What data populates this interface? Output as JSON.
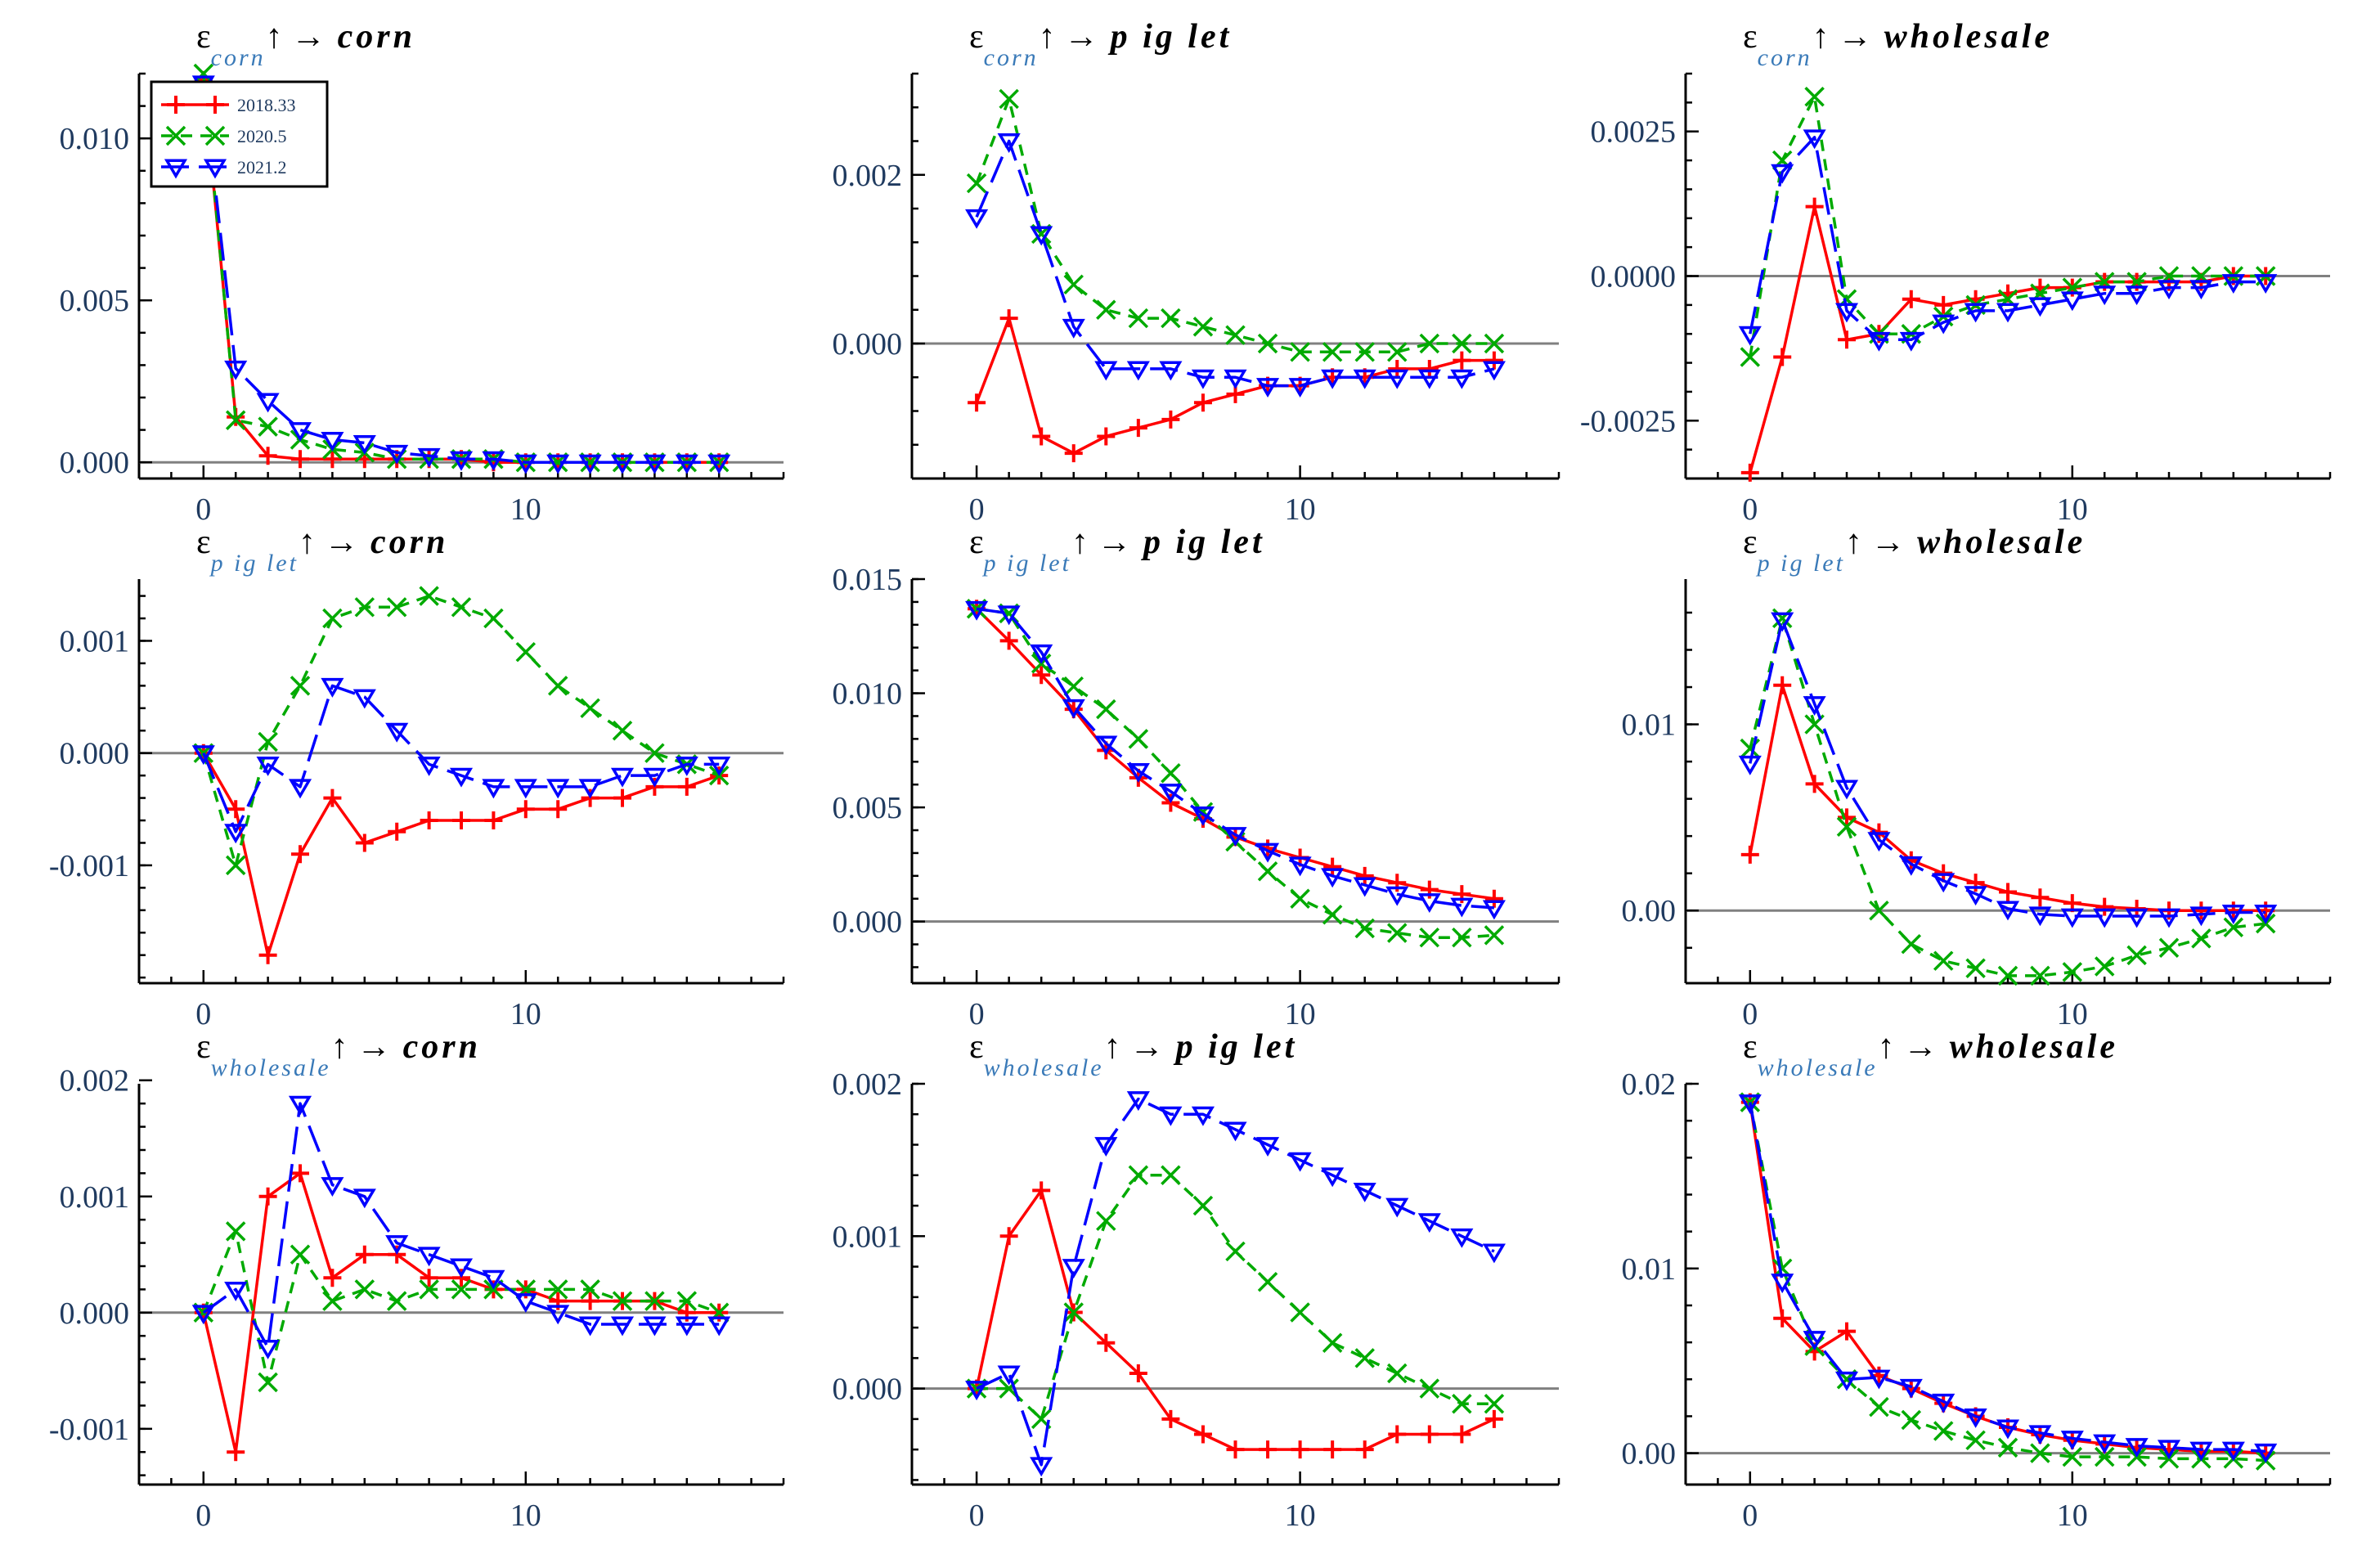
{
  "colors": {
    "series": [
      "#ff0000",
      "#00aa00",
      "#0000ff"
    ],
    "zero_line": "#808080",
    "axis": "#000000",
    "tick_label": "#1f3a5f",
    "title_sub": "#3a7ab8"
  },
  "chart_data": [
    {
      "type": "line",
      "title": {
        "prefix": "ε",
        "sub": "corn",
        "suffix": "↑ → corn"
      },
      "x": [
        0,
        1,
        2,
        3,
        4,
        5,
        6,
        7,
        8,
        9,
        10,
        11,
        12,
        13,
        14,
        15,
        16
      ],
      "xticks": [
        0,
        10
      ],
      "xtick_labels": [
        "0",
        "10"
      ],
      "xlim": [
        -2,
        18
      ],
      "ylim": [
        -0.0005,
        0.012
      ],
      "yticks": [
        0.0,
        0.005,
        0.01
      ],
      "ytick_labels": [
        "0.000",
        "0.005",
        "0.010"
      ],
      "legend": {
        "position": "top-left",
        "labels": [
          "2018.33",
          "2020.5",
          "2021.2"
        ]
      },
      "series": [
        {
          "name": "2018.33",
          "marker": "plus",
          "dash": "none",
          "values": [
            0.0118,
            0.0014,
            0.0002,
            0.0001,
            0.0001,
            0.0001,
            0.0001,
            0.0001,
            0.0001,
            0.0,
            0.0,
            0.0,
            0.0,
            0.0,
            0.0,
            0.0,
            0.0
          ]
        },
        {
          "name": "2020.5",
          "marker": "x",
          "dash": "short",
          "values": [
            0.012,
            0.0013,
            0.0011,
            0.0007,
            0.0004,
            0.0003,
            0.0001,
            0.0001,
            0.0001,
            0.0001,
            0.0,
            0.0,
            0.0,
            0.0,
            0.0,
            0.0,
            0.0
          ]
        },
        {
          "name": "2021.2",
          "marker": "triangle-down",
          "dash": "long",
          "values": [
            0.0117,
            0.0029,
            0.0019,
            0.001,
            0.0007,
            0.0006,
            0.0003,
            0.0002,
            0.0001,
            0.0001,
            0.0,
            0.0,
            0.0,
            0.0,
            0.0,
            0.0,
            0.0
          ]
        }
      ]
    },
    {
      "type": "line",
      "title": {
        "prefix": "ε",
        "sub": "corn",
        "suffix": "↑ → p ig let"
      },
      "x": [
        0,
        1,
        2,
        3,
        4,
        5,
        6,
        7,
        8,
        9,
        10,
        11,
        12,
        13,
        14,
        15,
        16
      ],
      "xticks": [
        0,
        10
      ],
      "xtick_labels": [
        "0",
        "10"
      ],
      "xlim": [
        -2,
        18
      ],
      "ylim": [
        -0.0016,
        0.0032
      ],
      "yticks": [
        0.0,
        0.002
      ],
      "ytick_labels": [
        "0.000",
        "0.002"
      ],
      "series": [
        {
          "name": "2018.33",
          "marker": "plus",
          "dash": "none",
          "values": [
            -0.0007,
            0.0003,
            -0.0011,
            -0.0013,
            -0.0011,
            -0.001,
            -0.0009,
            -0.0007,
            -0.0006,
            -0.0005,
            -0.0005,
            -0.0004,
            -0.0004,
            -0.0003,
            -0.0003,
            -0.0002,
            -0.0002
          ]
        },
        {
          "name": "2020.5",
          "marker": "x",
          "dash": "short",
          "values": [
            0.0019,
            0.0029,
            0.0013,
            0.0007,
            0.0004,
            0.0003,
            0.0003,
            0.0002,
            0.0001,
            0.0,
            -0.0001,
            -0.0001,
            -0.0001,
            -0.0001,
            0.0,
            0.0,
            0.0
          ]
        },
        {
          "name": "2021.2",
          "marker": "triangle-down",
          "dash": "long",
          "values": [
            0.0015,
            0.0024,
            0.0013,
            0.0002,
            -0.0003,
            -0.0003,
            -0.0003,
            -0.0004,
            -0.0004,
            -0.0005,
            -0.0005,
            -0.0004,
            -0.0004,
            -0.0004,
            -0.0004,
            -0.0004,
            -0.0003
          ]
        }
      ]
    },
    {
      "type": "line",
      "title": {
        "prefix": "ε",
        "sub": "corn",
        "suffix": "↑ → wholesale"
      },
      "x": [
        0,
        1,
        2,
        3,
        4,
        5,
        6,
        7,
        8,
        9,
        10,
        11,
        12,
        13,
        14,
        15,
        16
      ],
      "xticks": [
        0,
        10
      ],
      "xtick_labels": [
        "0",
        "10"
      ],
      "xlim": [
        -2,
        18
      ],
      "ylim": [
        -0.0035,
        0.0035
      ],
      "yticks": [
        -0.0025,
        0.0,
        0.0025
      ],
      "ytick_labels": [
        "-0.0025",
        "0.0000",
        "0.0025"
      ],
      "series": [
        {
          "name": "2018.33",
          "marker": "plus",
          "dash": "none",
          "values": [
            -0.0034,
            -0.0014,
            0.0012,
            -0.0011,
            -0.001,
            -0.0004,
            -0.0005,
            -0.0004,
            -0.0003,
            -0.0002,
            -0.0002,
            -0.0001,
            -0.0001,
            -0.0001,
            -0.0001,
            0.0,
            0.0
          ]
        },
        {
          "name": "2020.5",
          "marker": "x",
          "dash": "short",
          "values": [
            -0.0014,
            0.002,
            0.0031,
            -0.0004,
            -0.001,
            -0.001,
            -0.0007,
            -0.0005,
            -0.0004,
            -0.0003,
            -0.0002,
            -0.0001,
            -0.0001,
            0.0,
            0.0,
            0.0,
            0.0
          ]
        },
        {
          "name": "2021.2",
          "marker": "triangle-down",
          "dash": "long",
          "values": [
            -0.001,
            0.0018,
            0.0024,
            -0.0006,
            -0.0011,
            -0.0011,
            -0.0008,
            -0.0006,
            -0.0006,
            -0.0005,
            -0.0004,
            -0.0003,
            -0.0003,
            -0.0002,
            -0.0002,
            -0.0001,
            -0.0001
          ]
        }
      ]
    },
    {
      "type": "line",
      "title": {
        "prefix": "ε",
        "sub": "p ig let",
        "suffix": "↑ → corn"
      },
      "x": [
        0,
        1,
        2,
        3,
        4,
        5,
        6,
        7,
        8,
        9,
        10,
        11,
        12,
        13,
        14,
        15,
        16
      ],
      "xticks": [
        0,
        10
      ],
      "xtick_labels": [
        "0",
        "10"
      ],
      "xlim": [
        -2,
        18
      ],
      "ylim": [
        -0.00205,
        0.00155
      ],
      "yticks": [
        -0.001,
        0.0,
        0.001
      ],
      "ytick_labels": [
        "-0.001",
        "0.000",
        "0.001"
      ],
      "series": [
        {
          "name": "2018.33",
          "marker": "plus",
          "dash": "none",
          "values": [
            0.0,
            -0.0005,
            -0.0018,
            -0.0009,
            -0.0004,
            -0.0008,
            -0.0007,
            -0.0006,
            -0.0006,
            -0.0006,
            -0.0005,
            -0.0005,
            -0.0004,
            -0.0004,
            -0.0003,
            -0.0003,
            -0.0002
          ]
        },
        {
          "name": "2020.5",
          "marker": "x",
          "dash": "short",
          "values": [
            0.0,
            -0.001,
            0.0001,
            0.0006,
            0.0012,
            0.0013,
            0.0013,
            0.0014,
            0.0013,
            0.0012,
            0.0009,
            0.0006,
            0.0004,
            0.0002,
            0.0,
            -0.0001,
            -0.0002
          ]
        },
        {
          "name": "2021.2",
          "marker": "triangle-down",
          "dash": "long",
          "values": [
            0.0,
            -0.0007,
            -0.0001,
            -0.0003,
            0.0006,
            0.0005,
            0.0002,
            -0.0001,
            -0.0002,
            -0.0003,
            -0.0003,
            -0.0003,
            -0.0003,
            -0.0002,
            -0.0002,
            -0.0001,
            -0.0001
          ]
        }
      ]
    },
    {
      "type": "line",
      "title": {
        "prefix": "ε",
        "sub": "p ig let",
        "suffix": "↑ → p ig let"
      },
      "x": [
        0,
        1,
        2,
        3,
        4,
        5,
        6,
        7,
        8,
        9,
        10,
        11,
        12,
        13,
        14,
        15,
        16
      ],
      "xticks": [
        0,
        10
      ],
      "xtick_labels": [
        "0",
        "10"
      ],
      "xlim": [
        -2,
        18
      ],
      "ylim": [
        -0.0027,
        0.015
      ],
      "yticks": [
        0.0,
        0.005,
        0.01,
        0.015
      ],
      "ytick_labels": [
        "0.000",
        "0.005",
        "0.010",
        "0.015"
      ],
      "series": [
        {
          "name": "2018.33",
          "marker": "plus",
          "dash": "none",
          "values": [
            0.0137,
            0.0123,
            0.0108,
            0.0093,
            0.0075,
            0.0063,
            0.0052,
            0.0045,
            0.0037,
            0.0032,
            0.0028,
            0.0024,
            0.002,
            0.0017,
            0.0014,
            0.0012,
            0.001
          ]
        },
        {
          "name": "2020.5",
          "marker": "x",
          "dash": "short",
          "values": [
            0.0137,
            0.0135,
            0.0113,
            0.0103,
            0.0093,
            0.008,
            0.0065,
            0.0048,
            0.0035,
            0.0022,
            0.001,
            0.0003,
            -0.0003,
            -0.0005,
            -0.0007,
            -0.0007,
            -0.0006
          ]
        },
        {
          "name": "2021.2",
          "marker": "triangle-down",
          "dash": "long",
          "values": [
            0.0137,
            0.0135,
            0.0118,
            0.0094,
            0.0078,
            0.0066,
            0.0057,
            0.0047,
            0.0038,
            0.0031,
            0.0025,
            0.002,
            0.0016,
            0.0012,
            0.0009,
            0.0007,
            0.0006
          ]
        }
      ]
    },
    {
      "type": "line",
      "title": {
        "prefix": "ε",
        "sub": "p ig let",
        "suffix": "↑ → wholesale"
      },
      "x": [
        0,
        1,
        2,
        3,
        4,
        5,
        6,
        7,
        8,
        9,
        10,
        11,
        12,
        13,
        14,
        15,
        16
      ],
      "xticks": [
        0,
        10
      ],
      "xtick_labels": [
        "0",
        "10"
      ],
      "xlim": [
        -2,
        18
      ],
      "ylim": [
        -0.0039,
        0.0178
      ],
      "yticks": [
        0.0,
        0.01
      ],
      "ytick_labels": [
        "0.00",
        "0.01"
      ],
      "series": [
        {
          "name": "2018.33",
          "marker": "plus",
          "dash": "none",
          "values": [
            0.003,
            0.0121,
            0.0068,
            0.005,
            0.0042,
            0.0027,
            0.002,
            0.0015,
            0.001,
            0.0007,
            0.0004,
            0.0002,
            0.0001,
            0.0,
            0.0,
            0.0,
            0.0
          ]
        },
        {
          "name": "2020.5",
          "marker": "x",
          "dash": "short",
          "values": [
            0.0087,
            0.0157,
            0.01,
            0.0045,
            0.0,
            -0.0018,
            -0.0027,
            -0.0031,
            -0.0035,
            -0.0035,
            -0.0033,
            -0.003,
            -0.0024,
            -0.002,
            -0.0015,
            -0.0009,
            -0.0007
          ]
        },
        {
          "name": "2021.2",
          "marker": "triangle-down",
          "dash": "long",
          "values": [
            0.0079,
            0.0156,
            0.0111,
            0.0066,
            0.0038,
            0.0025,
            0.0016,
            0.0009,
            0.0001,
            -0.0002,
            -0.0003,
            -0.0003,
            -0.0003,
            -0.0003,
            -0.0002,
            -0.0001,
            -0.0001
          ]
        }
      ]
    },
    {
      "type": "line",
      "title": {
        "prefix": "ε",
        "sub": "wholesale",
        "suffix": "↑ → corn"
      },
      "x": [
        0,
        1,
        2,
        3,
        4,
        5,
        6,
        7,
        8,
        9,
        10,
        11,
        12,
        13,
        14,
        15,
        16
      ],
      "xticks": [
        0,
        10
      ],
      "xtick_labels": [
        "0",
        "10"
      ],
      "xlim": [
        -2,
        18
      ],
      "ylim": [
        -0.00148,
        0.00197
      ],
      "yticks": [
        -0.001,
        0.0,
        0.001,
        0.002
      ],
      "ytick_labels": [
        "-0.001",
        "0.000",
        "0.001",
        "0.002"
      ],
      "series": [
        {
          "name": "2018.33",
          "marker": "plus",
          "dash": "none",
          "values": [
            0.0,
            -0.0012,
            0.001,
            0.0012,
            0.0003,
            0.0005,
            0.0005,
            0.0003,
            0.0003,
            0.0002,
            0.0002,
            0.0001,
            0.0001,
            0.0001,
            0.0001,
            0.0,
            0.0
          ]
        },
        {
          "name": "2020.5",
          "marker": "x",
          "dash": "short",
          "values": [
            0.0,
            0.0007,
            -0.0006,
            0.0005,
            0.0001,
            0.0002,
            0.0001,
            0.0002,
            0.0002,
            0.0002,
            0.0002,
            0.0002,
            0.0002,
            0.0001,
            0.0001,
            0.0001,
            0.0
          ]
        },
        {
          "name": "2021.2",
          "marker": "triangle-down",
          "dash": "long",
          "values": [
            0.0,
            0.0002,
            -0.0003,
            0.0018,
            0.0011,
            0.001,
            0.0006,
            0.0005,
            0.0004,
            0.0003,
            0.0001,
            0.0,
            -0.0001,
            -0.0001,
            -0.0001,
            -0.0001,
            -0.0001
          ]
        }
      ]
    },
    {
      "type": "line",
      "title": {
        "prefix": "ε",
        "sub": "wholesale",
        "suffix": "↑ → p ig let"
      },
      "x": [
        0,
        1,
        2,
        3,
        4,
        5,
        6,
        7,
        8,
        9,
        10,
        11,
        12,
        13,
        14,
        15,
        16
      ],
      "xticks": [
        0,
        10
      ],
      "xtick_labels": [
        "0",
        "10"
      ],
      "xlim": [
        -2,
        18
      ],
      "ylim": [
        -0.00063,
        0.002
      ],
      "yticks": [
        0.0,
        0.001,
        0.002
      ],
      "ytick_labels": [
        "0.000",
        "0.001",
        "0.002"
      ],
      "series": [
        {
          "name": "2018.33",
          "marker": "plus",
          "dash": "none",
          "values": [
            0.0,
            0.001,
            0.0013,
            0.0005,
            0.0003,
            0.0001,
            -0.0002,
            -0.0003,
            -0.0004,
            -0.0004,
            -0.0004,
            -0.0004,
            -0.0004,
            -0.0003,
            -0.0003,
            -0.0003,
            -0.0002
          ]
        },
        {
          "name": "2020.5",
          "marker": "x",
          "dash": "short",
          "values": [
            0.0,
            0.0,
            -0.0002,
            0.0005,
            0.0011,
            0.0014,
            0.0014,
            0.0012,
            0.0009,
            0.0007,
            0.0005,
            0.0003,
            0.0002,
            0.0001,
            0.0,
            -0.0001,
            -0.0001
          ]
        },
        {
          "name": "2021.2",
          "marker": "triangle-down",
          "dash": "long",
          "values": [
            0.0,
            0.0001,
            -0.0005,
            0.0008,
            0.0016,
            0.0019,
            0.0018,
            0.0018,
            0.0017,
            0.0016,
            0.0015,
            0.0014,
            0.0013,
            0.0012,
            0.0011,
            0.001,
            0.0009
          ]
        }
      ]
    },
    {
      "type": "line",
      "title": {
        "prefix": "ε",
        "sub": "wholesale",
        "suffix": "↑ → wholesale"
      },
      "x": [
        0,
        1,
        2,
        3,
        4,
        5,
        6,
        7,
        8,
        9,
        10,
        11,
        12,
        13,
        14,
        15,
        16
      ],
      "xticks": [
        0,
        10
      ],
      "xtick_labels": [
        "0",
        "10"
      ],
      "xlim": [
        -2,
        18
      ],
      "ylim": [
        -0.0017,
        0.02
      ],
      "yticks": [
        0.0,
        0.01,
        0.02
      ],
      "ytick_labels": [
        "0.00",
        "0.01",
        "0.02"
      ],
      "series": [
        {
          "name": "2018.33",
          "marker": "plus",
          "dash": "none",
          "values": [
            0.019,
            0.0073,
            0.0055,
            0.0066,
            0.0042,
            0.0035,
            0.0027,
            0.002,
            0.0014,
            0.001,
            0.0007,
            0.0005,
            0.0003,
            0.0002,
            0.0001,
            0.0001,
            0.0
          ]
        },
        {
          "name": "2020.5",
          "marker": "x",
          "dash": "short",
          "values": [
            0.019,
            0.01,
            0.0058,
            0.004,
            0.0025,
            0.0018,
            0.0012,
            0.0007,
            0.0003,
            0.0,
            -0.0002,
            -0.0002,
            -0.0002,
            -0.0003,
            -0.0003,
            -0.0003,
            -0.0004
          ]
        },
        {
          "name": "2021.2",
          "marker": "triangle-down",
          "dash": "long",
          "values": [
            0.019,
            0.0093,
            0.0062,
            0.004,
            0.0041,
            0.0036,
            0.0028,
            0.002,
            0.0014,
            0.0011,
            0.0008,
            0.0006,
            0.0004,
            0.0003,
            0.0002,
            0.0002,
            0.0001
          ]
        }
      ]
    }
  ]
}
